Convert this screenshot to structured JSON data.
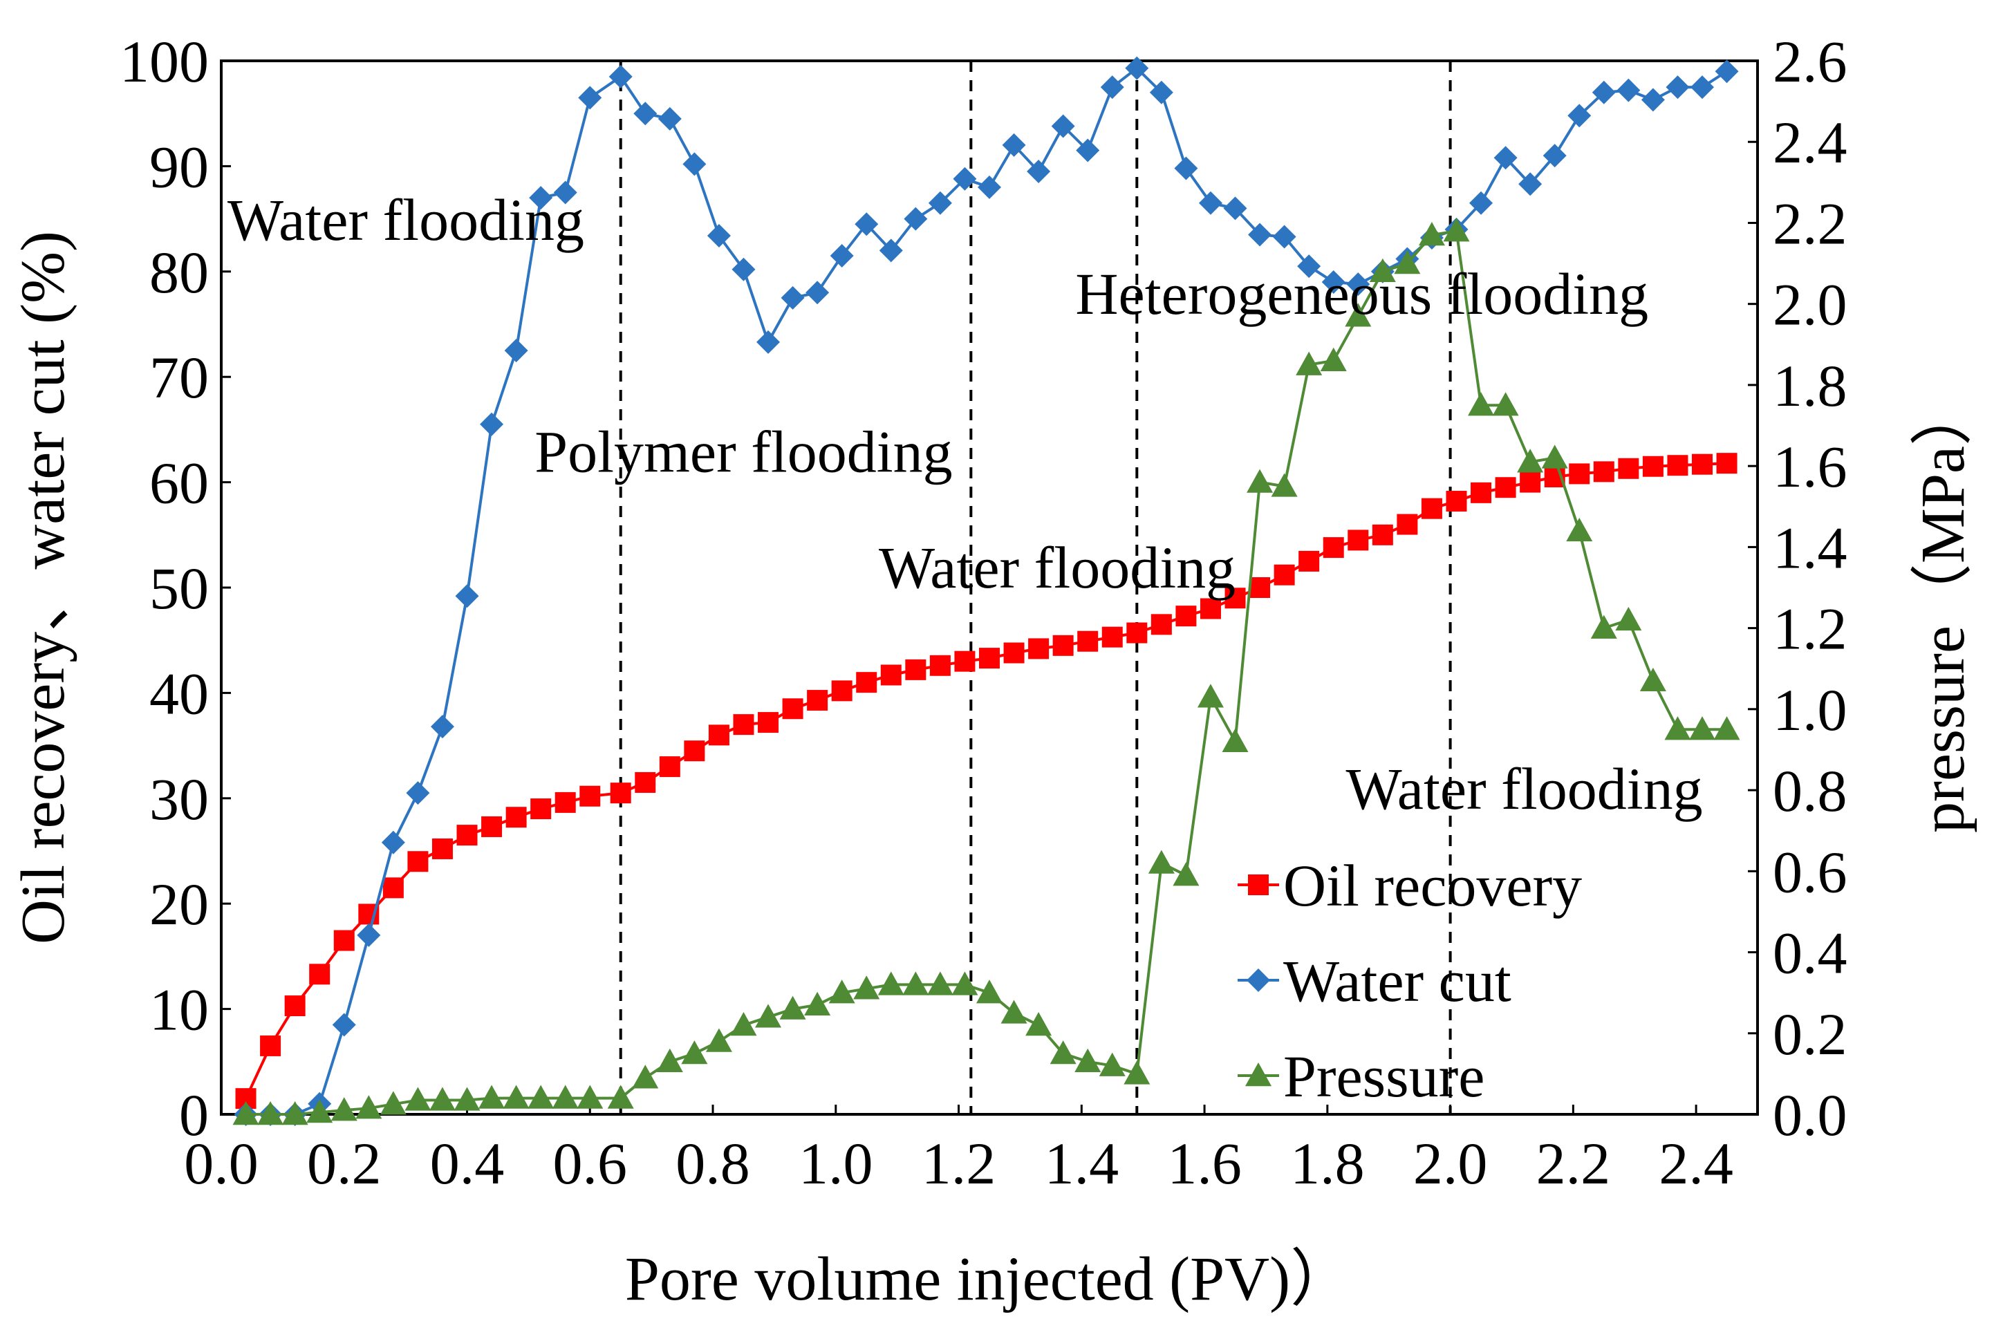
{
  "chart_data": {
    "type": "line",
    "title": "",
    "xlabel": "Pore volume injected (PV)）",
    "ylabel_left": "Oil recovery、water cut (%)",
    "ylabel_right": "pressure（MPa）",
    "xlim": [
      0.0,
      2.5
    ],
    "ylim_left": [
      0,
      100
    ],
    "ylim_right": [
      0.0,
      2.6
    ],
    "x_ticks": [
      "0.0",
      "0.2",
      "0.4",
      "0.6",
      "0.8",
      "1.0",
      "1.2",
      "1.4",
      "1.6",
      "1.8",
      "2.0",
      "2.2",
      "2.4"
    ],
    "y_left_ticks": [
      "0",
      "10",
      "20",
      "30",
      "40",
      "50",
      "60",
      "70",
      "80",
      "90",
      "100"
    ],
    "y_right_ticks": [
      "0.0",
      "0.2",
      "0.4",
      "0.6",
      "0.8",
      "1.0",
      "1.2",
      "1.4",
      "1.6",
      "1.8",
      "2.0",
      "2.2",
      "2.4",
      "2.6"
    ],
    "grid": false,
    "legend_position": "bottom-right",
    "phase_boundaries": [
      0.65,
      1.22,
      1.49,
      2.0
    ],
    "phase_labels": [
      {
        "text": "Water flooding",
        "x": 0.01,
        "y": 83
      },
      {
        "text": "Polymer flooding",
        "x": 0.51,
        "y": 61
      },
      {
        "text": "Water flooding",
        "x": 1.07,
        "y": 50
      },
      {
        "text": "Heterogeneous flooding",
        "x": 1.39,
        "y": 76
      },
      {
        "text": "Water flooding",
        "x": 1.83,
        "y": 29
      }
    ],
    "series": [
      {
        "name": "Oil recovery",
        "axis": "left",
        "marker": "square",
        "color": "#ff0000",
        "x": [
          0.04,
          0.08,
          0.12,
          0.16,
          0.2,
          0.24,
          0.28,
          0.32,
          0.36,
          0.4,
          0.44,
          0.48,
          0.52,
          0.56,
          0.6,
          0.65,
          0.69,
          0.73,
          0.77,
          0.81,
          0.85,
          0.89,
          0.93,
          0.97,
          1.01,
          1.05,
          1.09,
          1.13,
          1.17,
          1.21,
          1.25,
          1.29,
          1.33,
          1.37,
          1.41,
          1.45,
          1.49,
          1.53,
          1.57,
          1.61,
          1.65,
          1.69,
          1.73,
          1.77,
          1.81,
          1.85,
          1.89,
          1.93,
          1.97,
          2.01,
          2.05,
          2.09,
          2.13,
          2.17,
          2.21,
          2.25,
          2.29,
          2.33,
          2.37,
          2.41,
          2.45
        ],
        "values": [
          1.5,
          6.5,
          10.3,
          13.3,
          16.5,
          19.0,
          21.5,
          24.0,
          25.2,
          26.5,
          27.3,
          28.2,
          29.0,
          29.6,
          30.2,
          30.5,
          31.5,
          33.0,
          34.5,
          36.0,
          37.0,
          37.2,
          38.5,
          39.3,
          40.2,
          41.0,
          41.7,
          42.2,
          42.6,
          43.0,
          43.3,
          43.8,
          44.2,
          44.5,
          44.9,
          45.3,
          45.7,
          46.5,
          47.3,
          48.0,
          49.0,
          50.0,
          51.2,
          52.5,
          53.8,
          54.5,
          55.0,
          56.0,
          57.5,
          58.2,
          59.0,
          59.5,
          60.0,
          60.5,
          60.8,
          61.0,
          61.3,
          61.5,
          61.6,
          61.7,
          61.8
        ]
      },
      {
        "name": "Water cut",
        "axis": "left",
        "marker": "diamond",
        "color": "#2e75c1",
        "x": [
          0.04,
          0.08,
          0.12,
          0.16,
          0.2,
          0.24,
          0.28,
          0.32,
          0.36,
          0.4,
          0.44,
          0.48,
          0.52,
          0.56,
          0.6,
          0.65,
          0.69,
          0.73,
          0.77,
          0.81,
          0.85,
          0.89,
          0.93,
          0.97,
          1.01,
          1.05,
          1.09,
          1.13,
          1.17,
          1.21,
          1.25,
          1.29,
          1.33,
          1.37,
          1.41,
          1.45,
          1.49,
          1.53,
          1.57,
          1.61,
          1.65,
          1.69,
          1.73,
          1.77,
          1.81,
          1.85,
          1.89,
          1.93,
          1.97,
          2.01,
          2.05,
          2.09,
          2.13,
          2.17,
          2.21,
          2.25,
          2.29,
          2.33,
          2.37,
          2.41,
          2.45
        ],
        "values": [
          0,
          0,
          0,
          1.0,
          8.5,
          17.0,
          25.8,
          30.5,
          36.8,
          49.2,
          65.5,
          72.5,
          87.0,
          87.5,
          96.5,
          98.5,
          95.0,
          94.5,
          90.2,
          83.4,
          80.2,
          73.3,
          77.5,
          78.0,
          81.5,
          84.5,
          82.0,
          85.0,
          86.5,
          88.8,
          88.0,
          92.0,
          89.5,
          93.8,
          91.5,
          97.5,
          99.3,
          97.0,
          89.8,
          86.5,
          86.0,
          83.5,
          83.3,
          80.5,
          79.0,
          78.8,
          80.0,
          81.2,
          83.2,
          84.0,
          86.5,
          90.8,
          88.3,
          91.0,
          94.8,
          97.0,
          97.2,
          96.3,
          97.5,
          97.5,
          99.0
        ]
      },
      {
        "name": "Pressure",
        "axis": "right",
        "marker": "triangle",
        "color": "#4f8a35",
        "x": [
          0.04,
          0.08,
          0.12,
          0.16,
          0.2,
          0.24,
          0.28,
          0.32,
          0.36,
          0.4,
          0.44,
          0.48,
          0.52,
          0.56,
          0.6,
          0.65,
          0.69,
          0.73,
          0.77,
          0.81,
          0.85,
          0.89,
          0.93,
          0.97,
          1.01,
          1.05,
          1.09,
          1.13,
          1.17,
          1.21,
          1.25,
          1.29,
          1.33,
          1.37,
          1.41,
          1.45,
          1.49,
          1.53,
          1.57,
          1.61,
          1.65,
          1.69,
          1.73,
          1.77,
          1.81,
          1.85,
          1.89,
          1.93,
          1.97,
          2.01,
          2.05,
          2.09,
          2.13,
          2.17,
          2.21,
          2.25,
          2.29,
          2.33,
          2.37,
          2.41,
          2.45
        ],
        "values": [
          0.0,
          0.0,
          0.0,
          0.005,
          0.01,
          0.015,
          0.025,
          0.035,
          0.035,
          0.035,
          0.04,
          0.04,
          0.04,
          0.04,
          0.04,
          0.04,
          0.09,
          0.13,
          0.15,
          0.18,
          0.22,
          0.24,
          0.26,
          0.27,
          0.3,
          0.31,
          0.32,
          0.32,
          0.32,
          0.32,
          0.3,
          0.25,
          0.22,
          0.15,
          0.13,
          0.12,
          0.1,
          0.62,
          0.59,
          1.03,
          0.92,
          1.56,
          1.55,
          1.85,
          1.86,
          1.97,
          2.08,
          2.1,
          2.17,
          2.18,
          1.75,
          1.75,
          1.61,
          1.62,
          1.44,
          1.2,
          1.22,
          1.07,
          0.95,
          0.95,
          0.95
        ]
      }
    ]
  }
}
